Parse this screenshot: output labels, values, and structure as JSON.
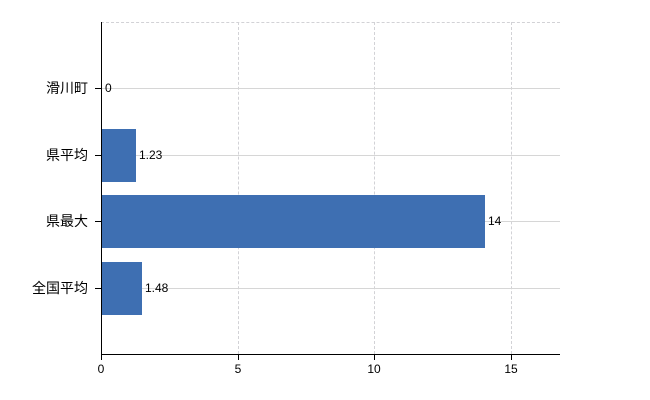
{
  "chart_data": {
    "type": "bar",
    "orientation": "horizontal",
    "title": "",
    "xlabel": "",
    "ylabel": "",
    "categories": [
      "滑川町",
      "県平均",
      "県最大",
      "全国平均"
    ],
    "values": [
      0,
      1.23,
      14,
      1.48
    ],
    "value_labels": [
      "0",
      "1.23",
      "14",
      "1.48"
    ],
    "x_ticks": [
      0,
      5,
      10,
      15
    ],
    "x_tick_labels": [
      "0",
      "5",
      "10",
      "15"
    ],
    "xlim": [
      0,
      16.8
    ],
    "grid": {
      "vertical_style": "dashed",
      "horizontal_style": "solid",
      "top_border_style": "dashed"
    },
    "legend": "none",
    "colors": {
      "bar": "#3e6fb2",
      "gridline": "#d6d6d6",
      "axis": "#000000",
      "text": "#000000",
      "background": "#ffffff"
    }
  }
}
